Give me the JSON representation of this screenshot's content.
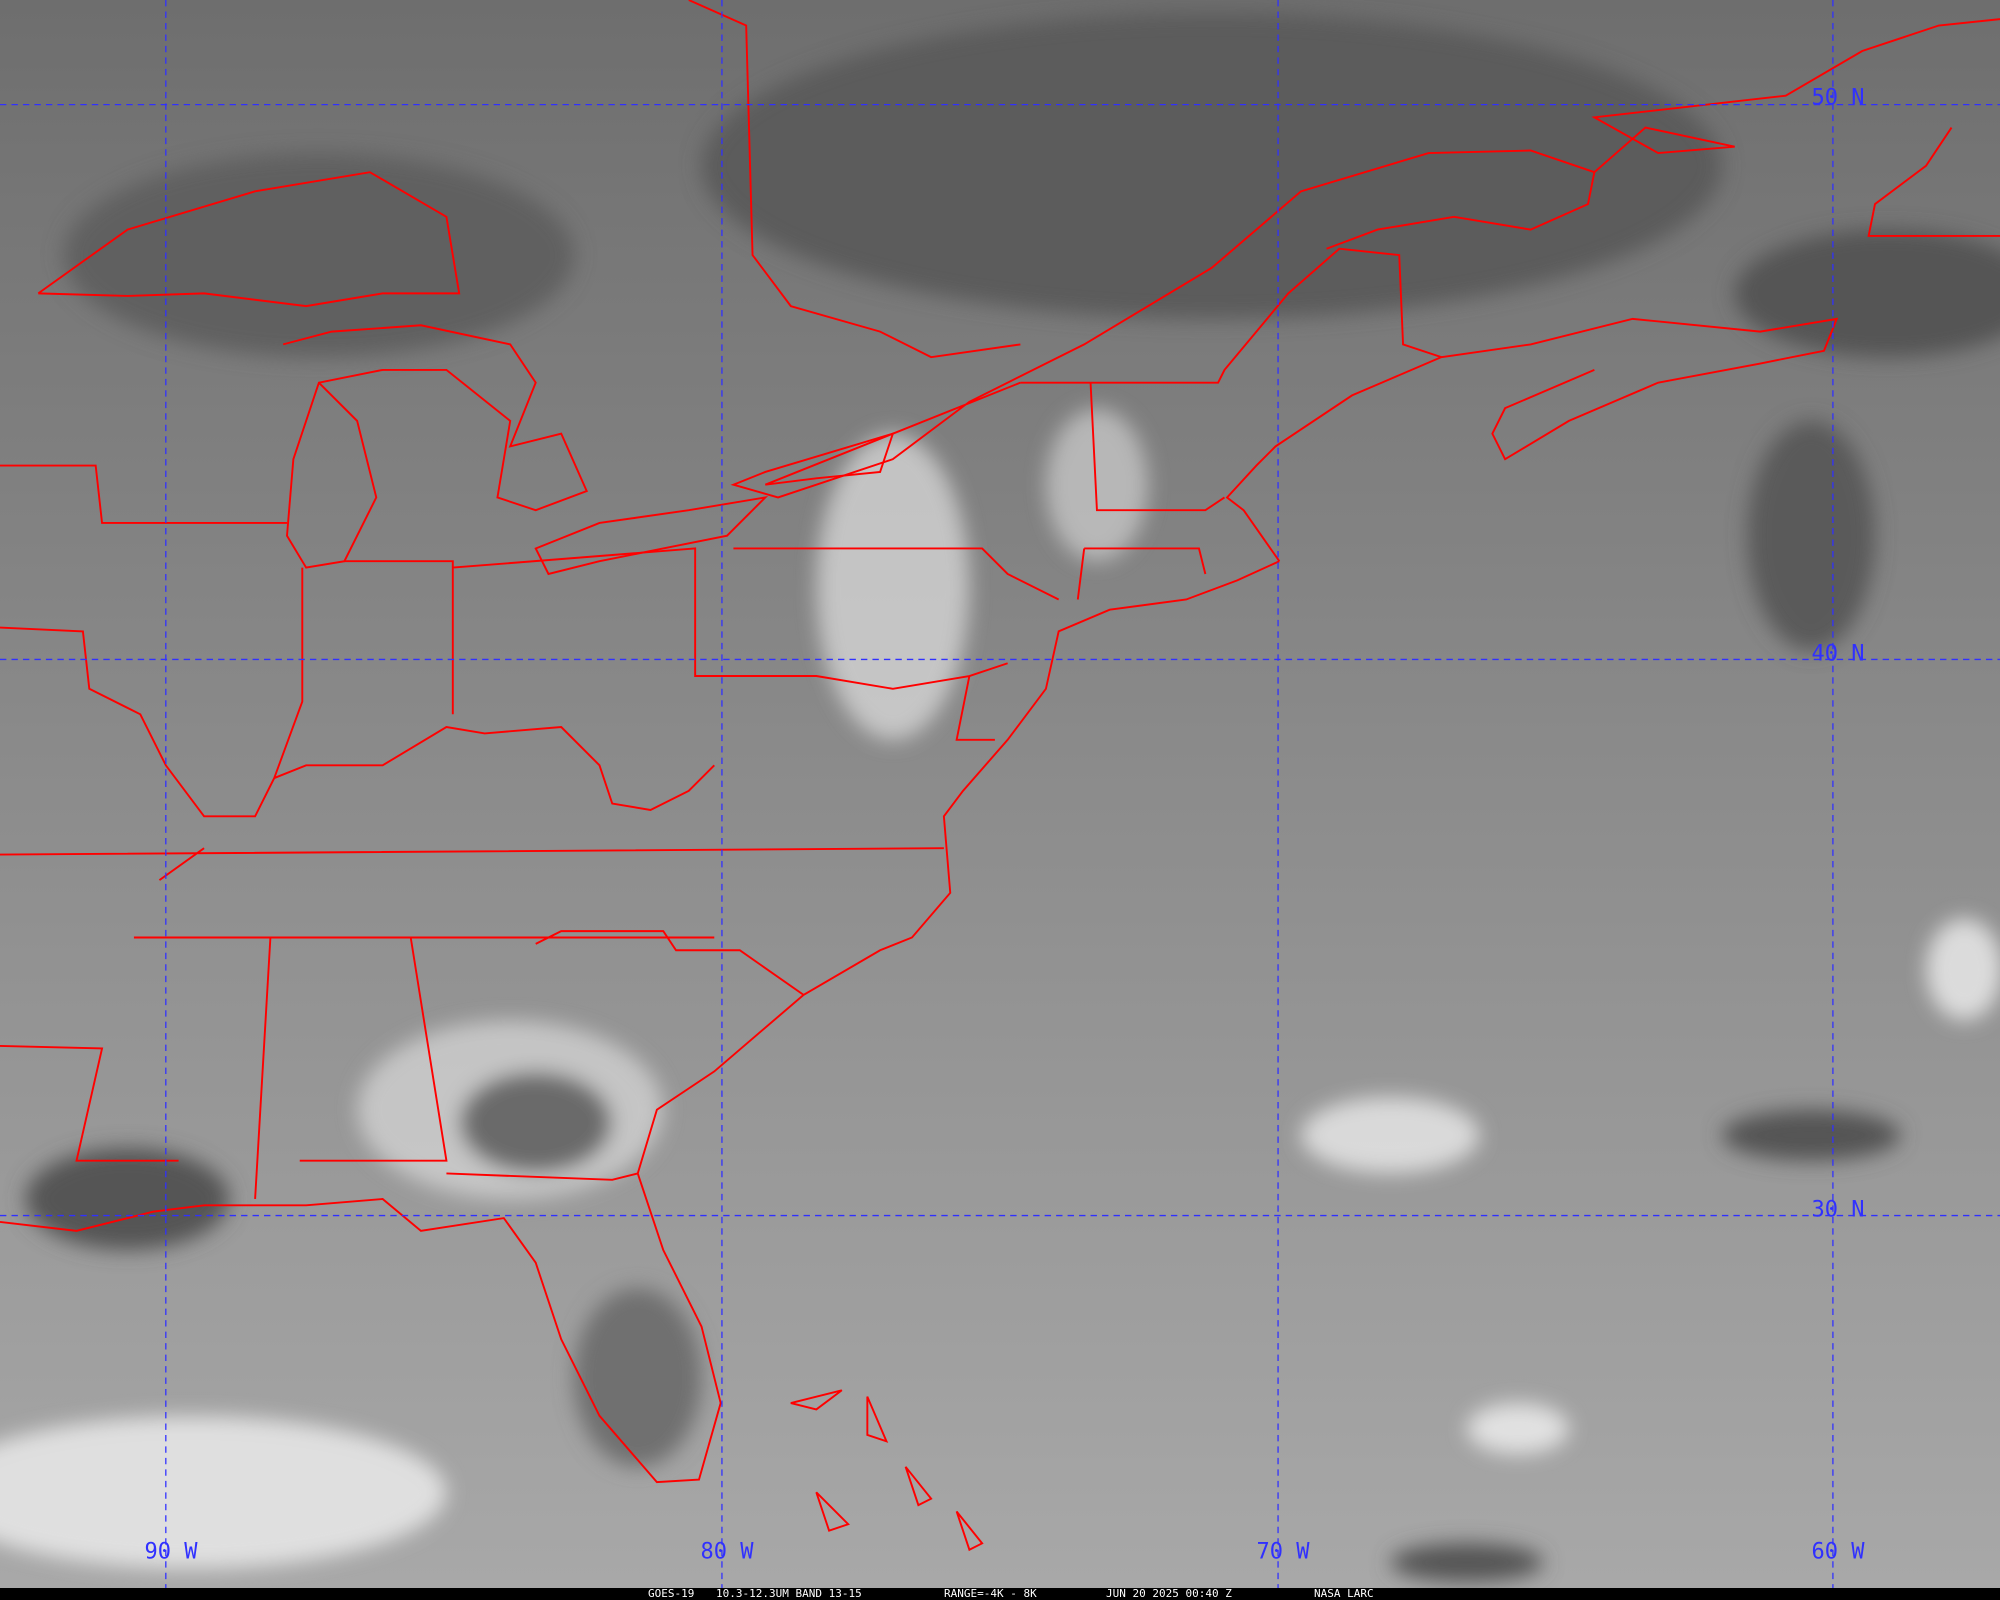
{
  "image": {
    "satellite": "GOES-19",
    "band": "10.3-12.3UM BAND 13-15",
    "range": "RANGE=-4K - 8K",
    "datetime": "JUN 20 2025 00:40 Z",
    "credit": "NASA LARC"
  },
  "grid": {
    "longitudes": [
      "90 W",
      "80 W",
      "70 W",
      "60 W"
    ],
    "latitudes": [
      "50 N",
      "40 N",
      "30 N"
    ],
    "line_color": "#3030ff"
  },
  "colors": {
    "boundaries": "#ff0000",
    "background": "#8a8a8a",
    "caption_bar": "#000000"
  }
}
